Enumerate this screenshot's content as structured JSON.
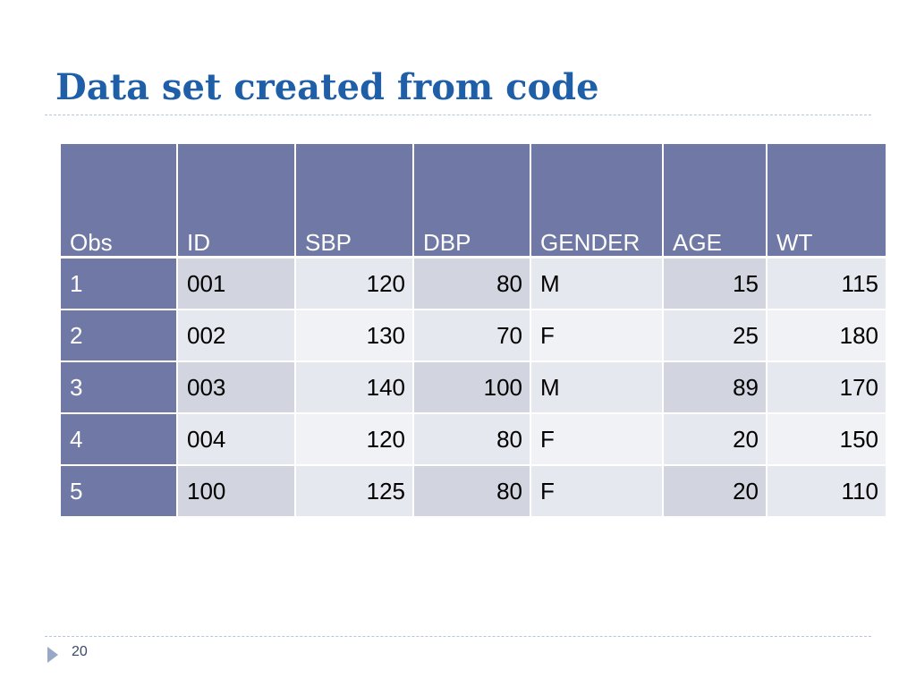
{
  "slide": {
    "title": "Data set created from code",
    "page_number": "20"
  },
  "table": {
    "headers": [
      "Obs",
      "ID",
      "SBP",
      "DBP",
      "GENDER",
      "AGE",
      "WT"
    ],
    "rows": [
      [
        "1",
        "001",
        "120",
        "80",
        "M",
        "15",
        "115"
      ],
      [
        "2",
        "002",
        "130",
        "70",
        "F",
        "25",
        "180"
      ],
      [
        "3",
        "003",
        "140",
        "100",
        "M",
        "89",
        "170"
      ],
      [
        "4",
        "004",
        "120",
        "80",
        "F",
        "20",
        "150"
      ],
      [
        "5",
        "100",
        "125",
        "80",
        "F",
        "20",
        "110"
      ]
    ]
  },
  "colors": {
    "title": "#1f5fa8",
    "header_background": "#7079a5",
    "row_band_light": "#e6e8ef",
    "row_band_dark": "#d2d5e0"
  },
  "icons": {
    "footer_marker": "triangle-bullet-icon"
  }
}
